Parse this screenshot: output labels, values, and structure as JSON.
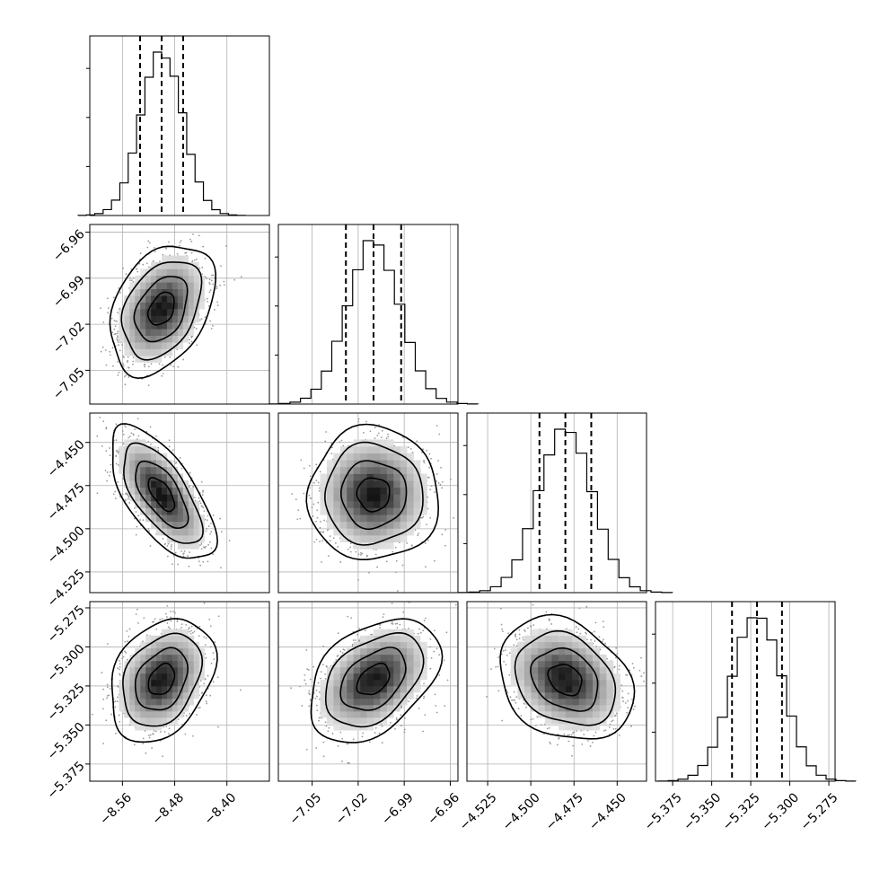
{
  "chart_data": {
    "type": "corner",
    "grid": true,
    "xlabels": [
      "",
      "",
      "",
      ""
    ],
    "parameters": [
      {
        "center": -8.5,
        "sigma": 0.032,
        "range": [
          -8.61,
          -8.335
        ],
        "ticks": [
          -8.56,
          -8.48,
          -8.4
        ],
        "tick_labels": [
          "−8.56",
          "−8.48",
          "−8.40"
        ],
        "quantiles": [
          -8.533,
          -8.5,
          -8.467
        ],
        "hist_peak": 1.0
      },
      {
        "center": -7.01,
        "sigma": 0.017,
        "range": [
          -7.072,
          -6.955
        ],
        "ticks": [
          -7.05,
          -7.02,
          -6.99,
          -6.96
        ],
        "tick_labels": [
          "−7.05",
          "−7.02",
          "−6.99",
          "−6.96"
        ],
        "quantiles": [
          -7.028,
          -7.01,
          -6.992
        ],
        "hist_peak": 1.0
      },
      {
        "center": -4.48,
        "sigma": 0.0155,
        "range": [
          -4.537,
          -4.433
        ],
        "ticks": [
          -4.525,
          -4.5,
          -4.475,
          -4.45
        ],
        "tick_labels": [
          "−4.525",
          "−4.500",
          "−4.475",
          "−4.450"
        ],
        "quantiles": [
          -4.495,
          -4.48,
          -4.465
        ],
        "hist_peak": 1.0
      },
      {
        "center": -5.321,
        "sigma": 0.0158,
        "range": [
          -5.386,
          -5.271
        ],
        "ticks": [
          -5.375,
          -5.35,
          -5.325,
          -5.3,
          -5.275
        ],
        "tick_labels": [
          "−5.375",
          "−5.350",
          "−5.325",
          "−5.300",
          "−5.275"
        ],
        "quantiles": [
          -5.337,
          -5.321,
          -5.305
        ],
        "hist_peak": 1.0
      }
    ],
    "correlations": [
      {
        "i": 1,
        "j": 0,
        "rho": 0.35
      },
      {
        "i": 2,
        "j": 0,
        "rho": -0.65
      },
      {
        "i": 2,
        "j": 1,
        "rho": 0.0
      },
      {
        "i": 3,
        "j": 0,
        "rho": 0.3
      },
      {
        "i": 3,
        "j": 1,
        "rho": 0.4
      },
      {
        "i": 3,
        "j": 2,
        "rho": -0.25
      }
    ],
    "contour_sigmas": [
      0.5,
      1.0,
      1.5,
      2.0
    ],
    "contour_color": "#000000",
    "scatter_color": "#9a9a9a",
    "density_colormap": [
      "#ffffff",
      "#000000"
    ]
  }
}
